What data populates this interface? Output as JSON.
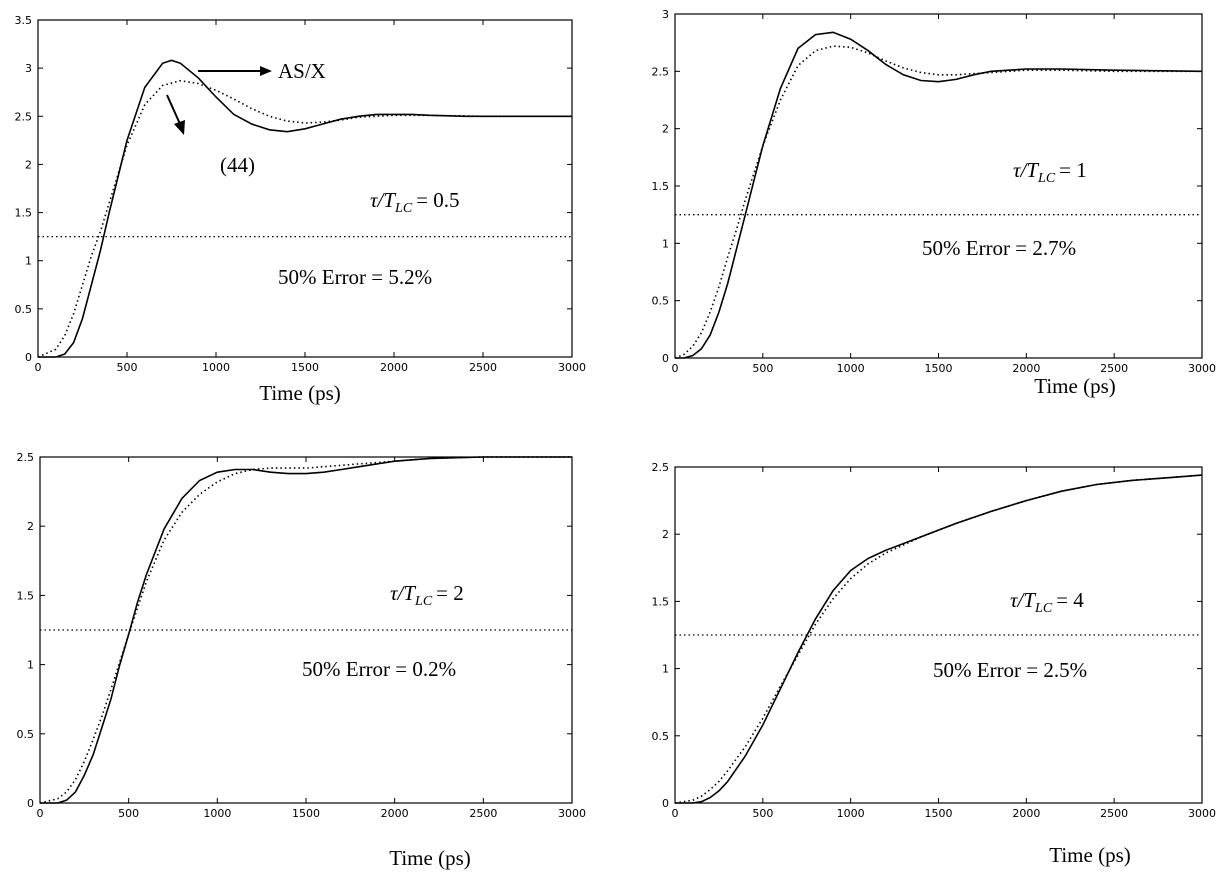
{
  "chart_data": [
    {
      "type": "line",
      "xlabel": "Time (ps)",
      "ylabel": "",
      "xlim": [
        0,
        3000
      ],
      "ylim": [
        0,
        3.5
      ],
      "xticks": [
        0,
        500,
        1000,
        1500,
        2000,
        2500,
        3000
      ],
      "yticks": [
        0,
        0.5,
        1,
        1.5,
        2,
        2.5,
        3,
        3.5
      ],
      "reference_line": 1.25,
      "ratio_label": "τ/T",
      "ratio_sub": "LC",
      "ratio_value": "= 0.5",
      "error_label": "50% Error = 5.2%",
      "annotations": [
        "AS/X",
        "(44)"
      ],
      "series": [
        {
          "name": "AS/X",
          "style": "solid",
          "x": [
            0,
            100,
            150,
            200,
            250,
            300,
            350,
            400,
            500,
            600,
            700,
            750,
            800,
            900,
            1000,
            1100,
            1200,
            1300,
            1400,
            1500,
            1600,
            1700,
            1800,
            1900,
            2000,
            2100,
            2200,
            2400,
            2600,
            2800,
            3000
          ],
          "y": [
            0,
            0,
            0.03,
            0.15,
            0.4,
            0.75,
            1.1,
            1.5,
            2.25,
            2.8,
            3.05,
            3.08,
            3.05,
            2.9,
            2.7,
            2.52,
            2.42,
            2.36,
            2.34,
            2.37,
            2.42,
            2.47,
            2.5,
            2.52,
            2.52,
            2.52,
            2.51,
            2.5,
            2.5,
            2.5,
            2.5
          ]
        },
        {
          "name": "(44)",
          "style": "dotted",
          "x": [
            0,
            100,
            150,
            200,
            250,
            300,
            350,
            400,
            500,
            600,
            700,
            800,
            900,
            1000,
            1100,
            1200,
            1300,
            1400,
            1500,
            1600,
            1700,
            1800,
            2000,
            2200,
            2500,
            2800,
            3000
          ],
          "y": [
            0,
            0.08,
            0.22,
            0.45,
            0.75,
            1.05,
            1.3,
            1.6,
            2.2,
            2.62,
            2.82,
            2.87,
            2.84,
            2.77,
            2.68,
            2.58,
            2.5,
            2.45,
            2.43,
            2.44,
            2.46,
            2.49,
            2.51,
            2.51,
            2.5,
            2.5,
            2.5
          ]
        }
      ]
    },
    {
      "type": "line",
      "xlabel": "Time (ps)",
      "ylabel": "",
      "xlim": [
        0,
        3000
      ],
      "ylim": [
        0,
        3
      ],
      "xticks": [
        0,
        500,
        1000,
        1500,
        2000,
        2500,
        3000
      ],
      "yticks": [
        0,
        0.5,
        1,
        1.5,
        2,
        2.5,
        3
      ],
      "reference_line": 1.25,
      "ratio_label": "τ/T",
      "ratio_sub": "LC",
      "ratio_value": "= 1",
      "error_label": "50% Error = 2.7%",
      "series": [
        {
          "name": "",
          "style": "solid",
          "x": [
            0,
            50,
            100,
            150,
            200,
            250,
            300,
            350,
            400,
            450,
            500,
            600,
            700,
            800,
            900,
            1000,
            1100,
            1200,
            1300,
            1400,
            1500,
            1600,
            1700,
            1800,
            1900,
            2000,
            2200,
            2500,
            3000
          ],
          "y": [
            0,
            0,
            0.02,
            0.08,
            0.2,
            0.4,
            0.65,
            0.95,
            1.25,
            1.55,
            1.85,
            2.35,
            2.7,
            2.82,
            2.84,
            2.78,
            2.68,
            2.56,
            2.47,
            2.42,
            2.41,
            2.43,
            2.47,
            2.5,
            2.51,
            2.52,
            2.52,
            2.51,
            2.5
          ]
        },
        {
          "name": "",
          "style": "dotted",
          "x": [
            0,
            50,
            100,
            150,
            200,
            250,
            300,
            350,
            400,
            500,
            600,
            700,
            800,
            900,
            1000,
            1100,
            1200,
            1300,
            1400,
            1500,
            1600,
            1700,
            1800,
            2000,
            2200,
            2500,
            3000
          ],
          "y": [
            0,
            0.03,
            0.1,
            0.22,
            0.4,
            0.62,
            0.88,
            1.12,
            1.38,
            1.85,
            2.25,
            2.55,
            2.68,
            2.72,
            2.71,
            2.66,
            2.59,
            2.53,
            2.49,
            2.47,
            2.47,
            2.48,
            2.49,
            2.51,
            2.51,
            2.5,
            2.5
          ]
        }
      ]
    },
    {
      "type": "line",
      "xlabel": "Time (ps)",
      "ylabel": "",
      "xlim": [
        0,
        3000
      ],
      "ylim": [
        0,
        2.5
      ],
      "xticks": [
        0,
        500,
        1000,
        1500,
        2000,
        2500,
        3000
      ],
      "yticks": [
        0,
        0.5,
        1,
        1.5,
        2,
        2.5
      ],
      "reference_line": 1.25,
      "ratio_label": "τ/T",
      "ratio_sub": "LC",
      "ratio_value": "= 2",
      "error_label": "50% Error = 0.2%",
      "series": [
        {
          "name": "",
          "style": "solid",
          "x": [
            0,
            100,
            150,
            200,
            250,
            300,
            350,
            400,
            450,
            500,
            550,
            600,
            700,
            800,
            900,
            1000,
            1100,
            1200,
            1300,
            1400,
            1500,
            1600,
            1700,
            1800,
            1900,
            2000,
            2200,
            2500,
            3000
          ],
          "y": [
            0,
            0,
            0.02,
            0.08,
            0.2,
            0.35,
            0.55,
            0.75,
            1.0,
            1.22,
            1.45,
            1.65,
            1.98,
            2.2,
            2.33,
            2.39,
            2.41,
            2.41,
            2.39,
            2.38,
            2.38,
            2.39,
            2.41,
            2.43,
            2.45,
            2.47,
            2.49,
            2.5,
            2.5
          ]
        },
        {
          "name": "",
          "style": "dotted",
          "x": [
            0,
            100,
            150,
            200,
            250,
            300,
            350,
            400,
            450,
            500,
            600,
            700,
            800,
            900,
            1000,
            1100,
            1200,
            1300,
            1400,
            1500,
            1600,
            1800,
            2000,
            2200,
            2500,
            3000
          ],
          "y": [
            0,
            0.03,
            0.08,
            0.17,
            0.3,
            0.46,
            0.63,
            0.82,
            1.02,
            1.22,
            1.6,
            1.9,
            2.1,
            2.23,
            2.32,
            2.38,
            2.41,
            2.42,
            2.42,
            2.42,
            2.43,
            2.45,
            2.47,
            2.49,
            2.5,
            2.5
          ]
        }
      ]
    },
    {
      "type": "line",
      "xlabel": "Time (ps)",
      "ylabel": "",
      "xlim": [
        0,
        3000
      ],
      "ylim": [
        0,
        2.5
      ],
      "xticks": [
        0,
        500,
        1000,
        1500,
        2000,
        2500,
        3000
      ],
      "yticks": [
        0,
        0.5,
        1,
        1.5,
        2,
        2.5
      ],
      "reference_line": 1.25,
      "ratio_label": "τ/T",
      "ratio_sub": "LC",
      "ratio_value": "= 4",
      "error_label": "50% Error = 2.5%",
      "series": [
        {
          "name": "",
          "style": "solid",
          "x": [
            0,
            100,
            150,
            200,
            250,
            300,
            400,
            500,
            600,
            700,
            800,
            900,
            1000,
            1100,
            1200,
            1400,
            1600,
            1800,
            2000,
            2200,
            2400,
            2600,
            2800,
            3000
          ],
          "y": [
            0,
            0,
            0.01,
            0.04,
            0.09,
            0.16,
            0.35,
            0.58,
            0.85,
            1.12,
            1.37,
            1.58,
            1.73,
            1.82,
            1.88,
            1.98,
            2.08,
            2.17,
            2.25,
            2.32,
            2.37,
            2.4,
            2.42,
            2.44
          ]
        },
        {
          "name": "",
          "style": "dotted",
          "x": [
            0,
            100,
            150,
            200,
            250,
            300,
            400,
            500,
            600,
            700,
            800,
            900,
            1000,
            1100,
            1200,
            1400,
            1600,
            1800,
            2000,
            2200,
            2400,
            2600,
            2800,
            3000
          ],
          "y": [
            0,
            0.02,
            0.05,
            0.1,
            0.16,
            0.24,
            0.42,
            0.63,
            0.87,
            1.1,
            1.33,
            1.52,
            1.67,
            1.78,
            1.86,
            1.98,
            2.08,
            2.17,
            2.25,
            2.32,
            2.37,
            2.4,
            2.42,
            2.44
          ]
        }
      ]
    }
  ]
}
